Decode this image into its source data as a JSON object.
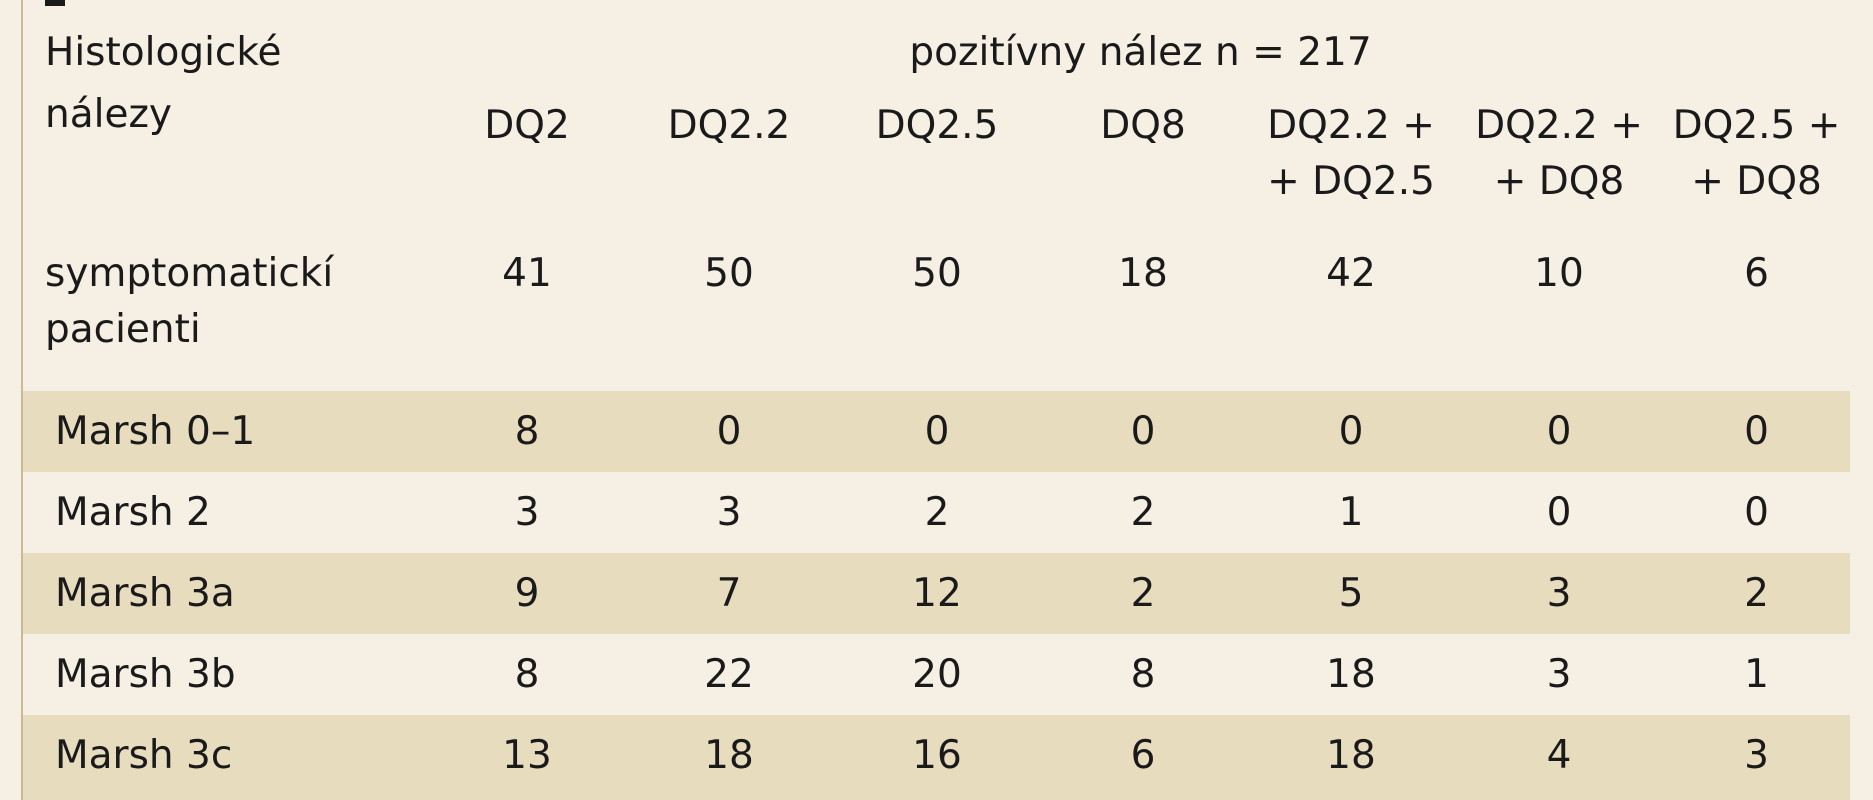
{
  "table": {
    "header": {
      "row_label_line1": "Histologické",
      "row_label_line2": "nálezy",
      "group_title": "pozitívny nález  n = 217",
      "columns": [
        {
          "line1": "DQ2",
          "line2": ""
        },
        {
          "line1": "DQ2.2",
          "line2": ""
        },
        {
          "line1": "DQ2.5",
          "line2": ""
        },
        {
          "line1": "DQ8",
          "line2": ""
        },
        {
          "line1": "DQ2.2 +",
          "line2": "+ DQ2.5"
        },
        {
          "line1": "DQ2.2 +",
          "line2": "+ DQ8"
        },
        {
          "line1": "DQ2.5 +",
          "line2": "+ DQ8"
        }
      ]
    },
    "summary_row": {
      "label_line1": "symptomatickí",
      "label_line2": "pacienti",
      "values": [
        "41",
        "50",
        "50",
        "18",
        "42",
        "10",
        "6"
      ]
    },
    "rows": [
      {
        "label": "Marsh 0–1",
        "values": [
          "8",
          "0",
          "0",
          "0",
          "0",
          "0",
          "0"
        ]
      },
      {
        "label": "Marsh 2",
        "values": [
          "3",
          "3",
          "2",
          "2",
          "1",
          "0",
          "0"
        ]
      },
      {
        "label": "Marsh 3a",
        "values": [
          "9",
          "7",
          "12",
          "2",
          "5",
          "3",
          "2"
        ]
      },
      {
        "label": "Marsh 3b",
        "values": [
          "8",
          "22",
          "20",
          "8",
          "18",
          "3",
          "1"
        ]
      },
      {
        "label": "Marsh 3c",
        "values": [
          "13",
          "18",
          "16",
          "6",
          "18",
          "4",
          "3"
        ]
      }
    ]
  },
  "colors": {
    "background": "#f5efe4",
    "row_shade": "#e8dcbf",
    "text": "#1a1a1a"
  }
}
